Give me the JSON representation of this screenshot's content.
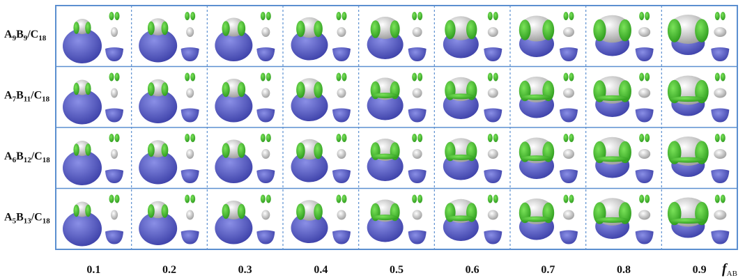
{
  "rows": [
    {
      "label": [
        "A",
        "9",
        "B",
        "9",
        "/C",
        "18"
      ]
    },
    {
      "label": [
        "A",
        "7",
        "B",
        "11",
        "/C",
        "18"
      ]
    },
    {
      "label": [
        "A",
        "6",
        "B",
        "12",
        "/C",
        "18"
      ]
    },
    {
      "label": [
        "A",
        "5",
        "B",
        "13",
        "/C",
        "18"
      ]
    }
  ],
  "columns": [
    "0.1",
    "0.2",
    "0.3",
    "0.4",
    "0.5",
    "0.6",
    "0.7",
    "0.8",
    "0.9"
  ],
  "axis_label": [
    "f",
    "AB"
  ]
}
